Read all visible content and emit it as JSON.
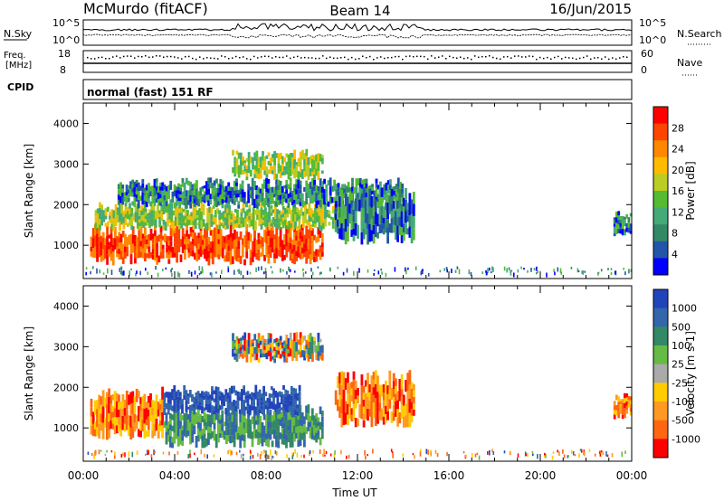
{
  "header": {
    "station": "McMurdo (fitACF)",
    "beam": "Beam 14",
    "date": "16/Jun/2015"
  },
  "top_panels": {
    "nsky_label": "N.Sky",
    "nsky_ticks": [
      "10^5",
      "10^0"
    ],
    "nsearch_label": "N.Search",
    "nsearch_ticks": [
      "10^5",
      "10^0"
    ],
    "freq_label_line1": "Freq.",
    "freq_label_line2": "[MHz]",
    "freq_ticks": [
      "18",
      "8"
    ],
    "nave_label": "Nave",
    "nave_ticks": [
      "60",
      "0"
    ],
    "cpid_label": "CPID",
    "cpid_text": "normal (fast) 151 RF"
  },
  "chart_data": [
    {
      "type": "heatmap",
      "panel": "power",
      "ylabel": "Slant Range [km]",
      "y_ticks": [
        "1000",
        "2000",
        "3000",
        "4000"
      ],
      "ylim": [
        180,
        4500
      ],
      "x_ticks": [
        "00:00",
        "04:00",
        "08:00",
        "12:00",
        "16:00",
        "20:00",
        "00:00"
      ],
      "xlim_hours": [
        0,
        24
      ],
      "colorbar": {
        "label": "Power [dB]",
        "ticks": [
          "28",
          "24",
          "20",
          "16",
          "12",
          "8",
          "4"
        ],
        "colors": [
          "#ff0000",
          "#ff4400",
          "#ff8800",
          "#ffbb00",
          "#bbcc22",
          "#55bb33",
          "#44aa77",
          "#338866",
          "#2255aa",
          "#0000ff"
        ]
      },
      "regions": [
        {
          "t0": 0.3,
          "t1": 10.5,
          "r0": 500,
          "r1": 1450,
          "level": "high"
        },
        {
          "t0": 0.5,
          "t1": 11.5,
          "r0": 1350,
          "r1": 2000,
          "level": "mid"
        },
        {
          "t0": 1.5,
          "t1": 14.0,
          "r0": 1900,
          "r1": 2600,
          "level": "low"
        },
        {
          "t0": 6.5,
          "t1": 10.5,
          "r0": 2600,
          "r1": 3300,
          "level": "mid"
        },
        {
          "t0": 11.0,
          "t1": 14.5,
          "r0": 1000,
          "r1": 2300,
          "level": "low"
        },
        {
          "t0": 23.2,
          "t1": 24.0,
          "r0": 1200,
          "r1": 1800,
          "level": "low"
        }
      ]
    },
    {
      "type": "heatmap",
      "panel": "velocity",
      "ylabel": "Slant Range [km]",
      "y_ticks": [
        "1000",
        "2000",
        "3000",
        "4000"
      ],
      "ylim": [
        180,
        4500
      ],
      "x_ticks": [
        "00:00",
        "04:00",
        "08:00",
        "12:00",
        "16:00",
        "20:00",
        "00:00"
      ],
      "xlim_hours": [
        0,
        24
      ],
      "xlabel": "Time UT",
      "colorbar": {
        "label": "Velocity [m s-1]",
        "ticks": [
          "1000",
          "500",
          "100",
          "25",
          "-25",
          "-100",
          "-500",
          "-1000"
        ],
        "colors": [
          "#2244bb",
          "#3366aa",
          "#338866",
          "#66bb44",
          "#aaaaaa",
          "#ffcc00",
          "#ff9922",
          "#ff6611",
          "#ff0000"
        ]
      },
      "regions": [
        {
          "t0": 0.3,
          "t1": 3.5,
          "r0": 700,
          "r1": 1900,
          "level": "negative"
        },
        {
          "t0": 3.5,
          "t1": 10.5,
          "r0": 500,
          "r1": 1500,
          "level": "positive"
        },
        {
          "t0": 3.5,
          "t1": 9.5,
          "r0": 1300,
          "r1": 2000,
          "level": "strong-positive"
        },
        {
          "t0": 6.5,
          "t1": 10.5,
          "r0": 2600,
          "r1": 3300,
          "level": "weak"
        },
        {
          "t0": 11.0,
          "t1": 14.5,
          "r0": 1000,
          "r1": 2300,
          "level": "negative"
        },
        {
          "t0": 23.2,
          "t1": 24.0,
          "r0": 1200,
          "r1": 1800,
          "level": "negative"
        }
      ]
    }
  ]
}
